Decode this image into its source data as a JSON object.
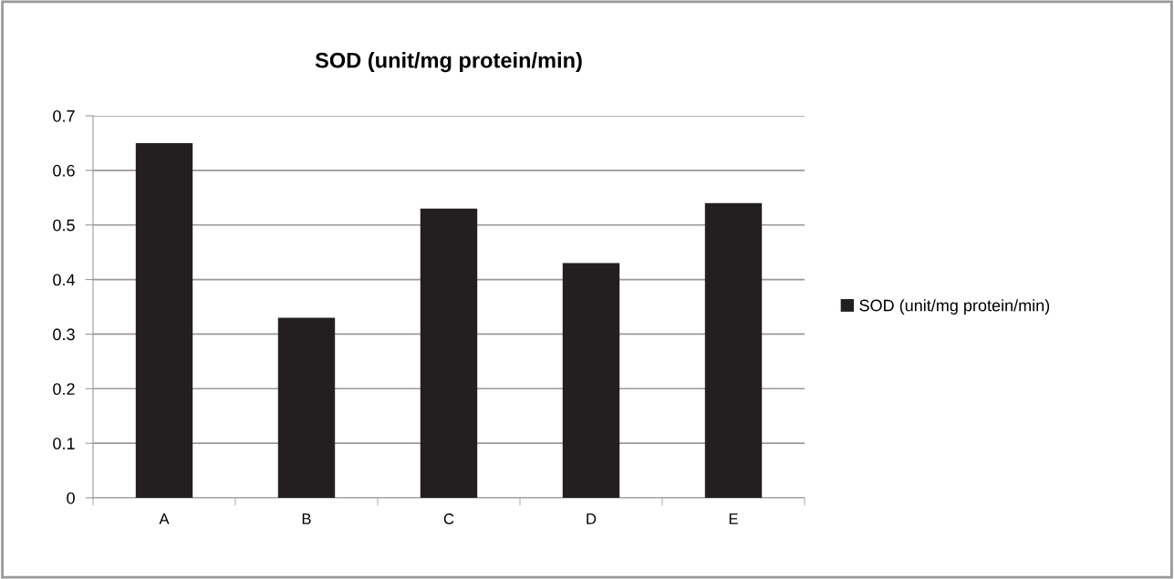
{
  "chart_data": {
    "type": "bar",
    "title": "SOD (unit/mg protein/min)",
    "categories": [
      "A",
      "B",
      "C",
      "D",
      "E"
    ],
    "series": [
      {
        "name": "SOD (unit/mg protein/min)",
        "color": "#231f20",
        "values": [
          0.65,
          0.33,
          0.53,
          0.43,
          0.54
        ]
      }
    ],
    "ylim": [
      0,
      0.7
    ],
    "yticks": [
      0,
      0.1,
      0.2,
      0.3,
      0.4,
      0.5,
      0.6,
      0.7
    ],
    "grid": "y",
    "legend": "right"
  }
}
